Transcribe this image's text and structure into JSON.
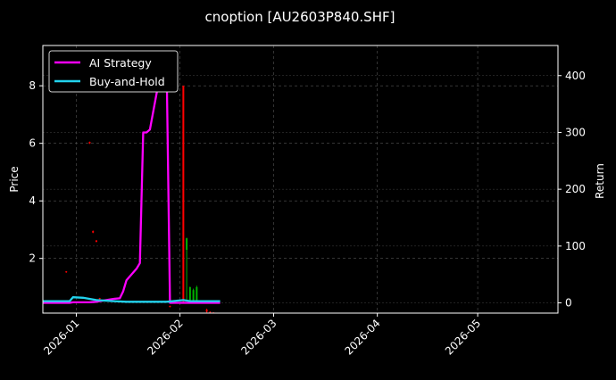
{
  "chart_data": {
    "type": "line",
    "title": "cnoption [AU2603P840.SHF]",
    "ylabel": "Price",
    "y2label": "Return",
    "ylim": [
      0.1,
      9.4
    ],
    "y2lim": [
      -18,
      453
    ],
    "xlim": [
      "2025-12-22",
      "2026-05-25"
    ],
    "yticks": [
      2,
      4,
      6,
      8
    ],
    "y2ticks": [
      0,
      100,
      200,
      300,
      400
    ],
    "xticks": [
      "2026-01",
      "2026-02",
      "2026-03",
      "2026-04",
      "2026-05"
    ],
    "grid": true,
    "legend_position": "top-left",
    "background": "#000000",
    "series": [
      {
        "name": "AI Strategy",
        "color": "#ff00ff",
        "axis": "right",
        "points": [
          [
            "2025-12-22",
            0
          ],
          [
            "2025-12-30",
            0
          ],
          [
            "2025-12-31",
            1
          ],
          [
            "2026-01-02",
            1
          ],
          [
            "2026-01-05",
            1
          ],
          [
            "2026-01-07",
            2
          ],
          [
            "2026-01-09",
            4
          ],
          [
            "2026-01-12",
            7
          ],
          [
            "2026-01-14",
            8
          ],
          [
            "2026-01-15",
            20
          ],
          [
            "2026-01-16",
            40
          ],
          [
            "2026-01-19",
            60
          ],
          [
            "2026-01-20",
            70
          ],
          [
            "2026-01-21",
            300
          ],
          [
            "2026-01-22",
            300
          ],
          [
            "2026-01-23",
            305
          ],
          [
            "2026-01-26",
            400
          ],
          [
            "2026-01-27",
            420
          ],
          [
            "2026-01-28",
            420
          ],
          [
            "2026-01-29",
            0
          ],
          [
            "2026-02-03",
            0
          ],
          [
            "2026-02-13",
            0
          ]
        ]
      },
      {
        "name": "Buy-and-Hold",
        "color": "#22d3ee",
        "axis": "right",
        "points": [
          [
            "2025-12-22",
            3
          ],
          [
            "2025-12-30",
            3
          ],
          [
            "2025-12-31",
            10
          ],
          [
            "2026-01-03",
            9
          ],
          [
            "2026-01-07",
            5
          ],
          [
            "2026-01-12",
            3
          ],
          [
            "2026-01-16",
            2
          ],
          [
            "2026-01-22",
            2
          ],
          [
            "2026-01-28",
            2
          ],
          [
            "2026-02-02",
            5
          ],
          [
            "2026-02-04",
            3
          ],
          [
            "2026-02-13",
            3
          ]
        ]
      }
    ],
    "candles": [
      {
        "date": "2025-12-29",
        "open": 1.52,
        "close": 1.55,
        "high": 1.56,
        "low": 1.5,
        "color": "#ff0000"
      },
      {
        "date": "2026-01-05",
        "open": 6.0,
        "close": 6.05,
        "high": 6.06,
        "low": 5.98,
        "color": "#ff0000"
      },
      {
        "date": "2026-01-06",
        "open": 2.95,
        "close": 2.9,
        "high": 2.97,
        "low": 2.88,
        "color": "#ff0000"
      },
      {
        "date": "2026-01-07",
        "open": 2.62,
        "close": 2.58,
        "high": 2.64,
        "low": 2.56,
        "color": "#ff0000"
      },
      {
        "date": "2026-01-08",
        "open": 0.62,
        "close": 0.6,
        "high": 0.63,
        "low": 0.58,
        "color": "#ff0000"
      },
      {
        "date": "2026-01-29",
        "open": 0.35,
        "close": 0.32,
        "high": 0.36,
        "low": 0.3,
        "color": "#ff0000"
      },
      {
        "date": "2026-02-02",
        "open": 8.0,
        "close": 0.5,
        "high": 8.0,
        "low": 0.45,
        "color": "#ff0000"
      },
      {
        "date": "2026-02-03",
        "open": 2.3,
        "close": 2.7,
        "high": 2.72,
        "low": 0.5,
        "color": "#00b300"
      },
      {
        "date": "2026-02-04",
        "open": 0.5,
        "close": 1.0,
        "high": 1.02,
        "low": 0.45,
        "color": "#00b300"
      },
      {
        "date": "2026-02-05",
        "open": 0.55,
        "close": 0.9,
        "high": 0.95,
        "low": 0.5,
        "color": "#00b300"
      },
      {
        "date": "2026-02-06",
        "open": 0.5,
        "close": 1.0,
        "high": 1.05,
        "low": 0.45,
        "color": "#00b300"
      },
      {
        "date": "2026-02-09",
        "open": 0.22,
        "close": 0.15,
        "high": 0.25,
        "low": 0.12,
        "color": "#ff0000"
      },
      {
        "date": "2026-02-10",
        "open": 0.14,
        "close": 0.12,
        "high": 0.16,
        "low": 0.1,
        "color": "#ff0000"
      },
      {
        "date": "2026-02-11",
        "open": 0.12,
        "close": 0.11,
        "high": 0.13,
        "low": 0.1,
        "color": "#ff0000"
      }
    ]
  }
}
